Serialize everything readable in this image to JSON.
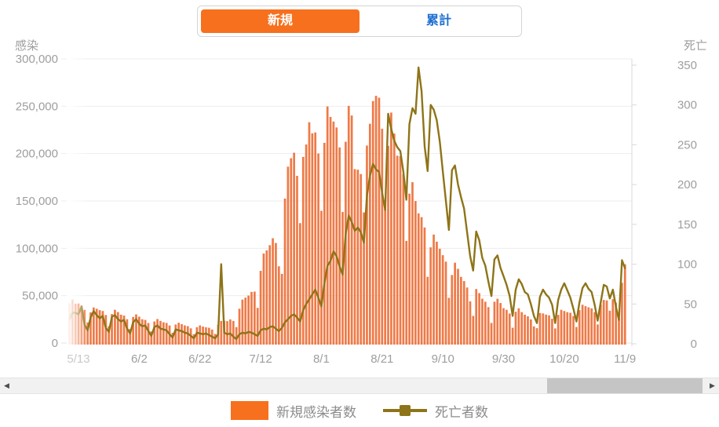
{
  "toggle": {
    "new_label": "新規",
    "cumulative_label": "累計"
  },
  "legend": {
    "bar_label": "新規感染者数",
    "line_label": "死亡者数"
  },
  "colors": {
    "accent_orange": "#f7701d",
    "toggle_blue": "#1d6fd0",
    "bar": "#ee7a47",
    "line": "#8e7418",
    "axis_text": "#9e9e9e",
    "axis_text_muted": "#c9c9c9",
    "grid": "#ededed",
    "axis_line": "#d9d9d9",
    "legend_text": "#8c8c8c",
    "scroll_track": "#f1f1f1",
    "scroll_thumb": "#c5c5c5"
  },
  "scrollbar": {
    "thumb_left_pct": 77.1,
    "thumb_width_pct": 22.5
  },
  "chart_data": {
    "type": "combo",
    "x_unit": "day",
    "x_start_label": "5/10",
    "x_ticks": [
      {
        "label": "5/13",
        "index": 3,
        "muted": true
      },
      {
        "label": "6/2",
        "index": 23
      },
      {
        "label": "6/22",
        "index": 43
      },
      {
        "label": "7/12",
        "index": 63
      },
      {
        "label": "8/1",
        "index": 83
      },
      {
        "label": "8/21",
        "index": 103
      },
      {
        "label": "9/10",
        "index": 123
      },
      {
        "label": "9/30",
        "index": 143
      },
      {
        "label": "10/20",
        "index": 163
      },
      {
        "label": "11/9",
        "index": 183
      }
    ],
    "left_axis": {
      "title": "感染",
      "min": 0,
      "max": 300000,
      "ticks": [
        {
          "label": "0",
          "value": 0
        },
        {
          "label": "50,000",
          "value": 50000
        },
        {
          "label": "100,000",
          "value": 100000
        },
        {
          "label": "150,000",
          "value": 150000
        },
        {
          "label": "200,000",
          "value": 200000
        },
        {
          "label": "250,000",
          "value": 250000
        },
        {
          "label": "300,000",
          "value": 300000
        }
      ]
    },
    "right_axis": {
      "title": "死亡",
      "min": 0,
      "max": 350,
      "ticks": [
        {
          "label": "0",
          "value": 0
        },
        {
          "label": "50",
          "value": 50
        },
        {
          "label": "100",
          "value": 100
        },
        {
          "label": "150",
          "value": 150
        },
        {
          "label": "200",
          "value": 200
        },
        {
          "label": "250",
          "value": 250
        },
        {
          "label": "300",
          "value": 300
        },
        {
          "label": "350",
          "value": 350
        }
      ]
    },
    "series": [
      {
        "name": "新規感染者数",
        "type": "bar",
        "axis": "left",
        "values": [
          42000,
          45900,
          41500,
          41700,
          39400,
          35000,
          21800,
          32300,
          37500,
          36200,
          34700,
          33800,
          29600,
          17800,
          30600,
          35100,
          32700,
          29900,
          29000,
          25100,
          14900,
          27500,
          30200,
          27800,
          25100,
          24400,
          21100,
          12300,
          22700,
          25300,
          23300,
          21900,
          21200,
          18500,
          10800,
          19500,
          21400,
          19900,
          18600,
          17800,
          15500,
          9300,
          16700,
          18600,
          17400,
          16600,
          16100,
          14200,
          9600,
          19400,
          23300,
          23500,
          23100,
          24900,
          23300,
          16800,
          36200,
          45800,
          47900,
          50100,
          54000,
          54300,
          37100,
          76200,
          94500,
          97800,
          103300,
          110600,
          105600,
          81000,
          73000,
          152500,
          186200,
          195100,
          200900,
          176500,
          126600,
          196500,
          209600,
          233100,
          221400,
          222300,
          200100,
          139600,
          211400,
          249800,
          238700,
          233800,
          227600,
          206500,
          138400,
          212500,
          250400,
          240200,
          183600,
          183000,
          178400,
          137900,
          208500,
          231500,
          255500,
          261000,
          259000,
          226200,
          141900,
          208200,
          243300,
          221100,
          197800,
          197300,
          178200,
          107800,
          157700,
          169800,
          149900,
          136900,
          132900,
          122000,
          69900,
          101000,
          114500,
          107000,
          99500,
          92700,
          85900,
          47700,
          71800,
          84800,
          78300,
          69800,
          65400,
          58600,
          44000,
          28600,
          57000,
          52700,
          46800,
          43600,
          37900,
          21200,
          43600,
          46700,
          42200,
          36800,
          35100,
          31100,
          16100,
          33000,
          36700,
          32600,
          29900,
          28200,
          24900,
          17600,
          15700,
          31700,
          31200,
          30000,
          29200,
          25600,
          15400,
          29700,
          35100,
          33800,
          32600,
          31900,
          28500,
          16900,
          34700,
          40400,
          38900,
          37700,
          36600,
          32600,
          19600,
          40600,
          45500,
          45000,
          34100,
          46200,
          42600,
          25800,
          63600,
          83200
        ]
      },
      {
        "name": "死亡者数",
        "type": "line",
        "axis": "right",
        "values": [
          30,
          39,
          39,
          37,
          47,
          24,
          17,
          33,
          41,
          36,
          32,
          35,
          20,
          15,
          34,
          36,
          31,
          28,
          30,
          19,
          13,
          27,
          31,
          25,
          22,
          23,
          16,
          10,
          21,
          23,
          19,
          18,
          17,
          12,
          8,
          18,
          17,
          16,
          14,
          13,
          10,
          7,
          14,
          13,
          12,
          13,
          11,
          9,
          7,
          12,
          100,
          14,
          12,
          13,
          9,
          6,
          12,
          14,
          13,
          15,
          14,
          12,
          10,
          17,
          19,
          18,
          21,
          22,
          19,
          16,
          20,
          27,
          31,
          35,
          37,
          33,
          28,
          42,
          50,
          56,
          62,
          68,
          58,
          47,
          76,
          98,
          104,
          116,
          110,
          97,
          87,
          138,
          161,
          153,
          142,
          146,
          140,
          127,
          186,
          211,
          226,
          219,
          216,
          190,
          168,
          289,
          270,
          255,
          247,
          242,
          216,
          181,
          276,
          296,
          289,
          347,
          317,
          248,
          217,
          300,
          294,
          281,
          254,
          216,
          180,
          143,
          218,
          224,
          200,
          184,
          170,
          140,
          110,
          92,
          141,
          130,
          108,
          98,
          78,
          60,
          106,
          111,
          95,
          85,
          74,
          60,
          35,
          68,
          81,
          75,
          65,
          62,
          50,
          35,
          26,
          59,
          68,
          62,
          58,
          49,
          26,
          55,
          68,
          76,
          67,
          58,
          44,
          28,
          52,
          70,
          76,
          69,
          65,
          49,
          29,
          52,
          74,
          72,
          57,
          68,
          47,
          30,
          105,
          95
        ]
      }
    ]
  }
}
